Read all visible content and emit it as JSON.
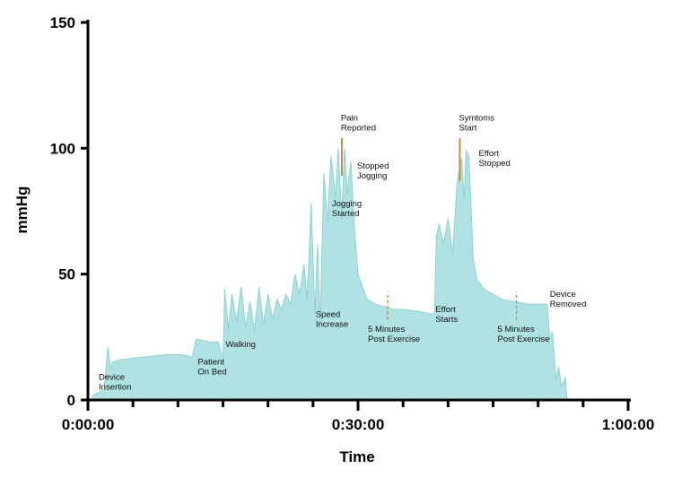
{
  "chart_data": {
    "type": "area",
    "xlabel": "Time",
    "ylabel": "mmHg",
    "xlim": [
      0,
      60
    ],
    "ylim": [
      0,
      150
    ],
    "x_tick_labels": [
      {
        "x": 0,
        "label": "0:00:00"
      },
      {
        "x": 30,
        "label": "0:30:00"
      },
      {
        "x": 60,
        "label": "1:00:00"
      }
    ],
    "x_minor_ticks": [
      5,
      10,
      15,
      20,
      25,
      35,
      40,
      45,
      50,
      55
    ],
    "y_ticks": [
      0,
      50,
      100,
      150
    ],
    "colors": {
      "fill": "#b0e2e4",
      "stroke": "#8fd0d3",
      "marker_solid": "#c98a4b",
      "marker_dashed": "#e07a45"
    },
    "series": [
      {
        "x": [
          0.4,
          0.6,
          1.8,
          2.2,
          2.5,
          2.8,
          3.5,
          6,
          9,
          10.5,
          11.6,
          12,
          12.3,
          13.6,
          14.5,
          15,
          15.2,
          15.6,
          16,
          16.5,
          17,
          17.5,
          18,
          18.5,
          19,
          19.5,
          20,
          20.5,
          21,
          21.5,
          22,
          22.5,
          23,
          23.5,
          24,
          24.3,
          24.5,
          24.8,
          25.2,
          25.5,
          25.8,
          26.2,
          26.6,
          27,
          27.5,
          27.8,
          28.2,
          28.5,
          28.8,
          29.2,
          29.6,
          30,
          31,
          32,
          33,
          34,
          35,
          37,
          38.5,
          38.7,
          39,
          39.5,
          40,
          40.5,
          41,
          41.5,
          41.8,
          42,
          42.3,
          42.8,
          43.2,
          43.6,
          44,
          45,
          46,
          47.5,
          49,
          51,
          51.3,
          51.6,
          52,
          52.3,
          52.6,
          53,
          53.2,
          53.4
        ],
        "values": [
          0,
          2,
          4,
          21,
          13,
          15,
          16,
          17,
          18,
          18,
          17,
          24,
          24,
          23,
          23,
          16,
          44,
          28,
          42,
          31,
          45,
          29,
          39,
          27,
          45,
          30,
          42,
          32,
          40,
          36,
          42,
          38,
          50,
          42,
          54,
          40,
          52,
          78,
          34,
          62,
          30,
          90,
          70,
          97,
          80,
          100,
          72,
          100,
          82,
          95,
          68,
          50,
          40,
          38,
          37,
          36,
          36,
          35,
          34,
          65,
          70,
          62,
          72,
          58,
          86,
          96,
          80,
          99,
          97,
          56,
          48,
          46,
          44,
          42,
          40,
          39,
          38,
          38,
          24,
          27,
          8,
          13,
          5,
          9,
          1,
          0
        ]
      }
    ],
    "annotations": [
      {
        "lines": [
          "Device",
          "Insertion"
        ],
        "x": 1.2,
        "y": 8
      },
      {
        "lines": [
          "Patient",
          "On Bed"
        ],
        "x": 12.2,
        "y": 14
      },
      {
        "lines": [
          "Walking"
        ],
        "x": 15.3,
        "y": 21
      },
      {
        "lines": [
          "Speed",
          "Increase"
        ],
        "x": 25.3,
        "y": 33
      },
      {
        "lines": [
          "Jogging",
          "Started"
        ],
        "x": 27.1,
        "y": 77
      },
      {
        "lines": [
          "Pain",
          "Reported"
        ],
        "x": 28.1,
        "y": 111
      },
      {
        "lines": [
          "Stopped",
          "Jogging"
        ],
        "x": 29.9,
        "y": 92
      },
      {
        "lines": [
          "5 Minutes",
          "Post Exercise"
        ],
        "x": 31.1,
        "y": 27
      },
      {
        "lines": [
          "Effort",
          "Starts"
        ],
        "x": 38.6,
        "y": 35
      },
      {
        "lines": [
          "Symtoms",
          "Start"
        ],
        "x": 41.2,
        "y": 111
      },
      {
        "lines": [
          "Effort",
          "Stopped"
        ],
        "x": 43.4,
        "y": 97
      },
      {
        "lines": [
          "5 Minutes",
          "Post Exercise"
        ],
        "x": 45.5,
        "y": 27
      },
      {
        "lines": [
          "Device",
          "Removed"
        ],
        "x": 51.3,
        "y": 41
      }
    ],
    "markers": [
      {
        "x": 28.2,
        "y_from": 89,
        "y_to": 104,
        "style": "solid"
      },
      {
        "x": 41.3,
        "y_from": 87,
        "y_to": 104,
        "style": "solid"
      },
      {
        "x": 33.3,
        "y_from": 32,
        "y_to": 43,
        "style": "dashed"
      },
      {
        "x": 47.6,
        "y_from": 32,
        "y_to": 43,
        "style": "dashed"
      }
    ]
  }
}
